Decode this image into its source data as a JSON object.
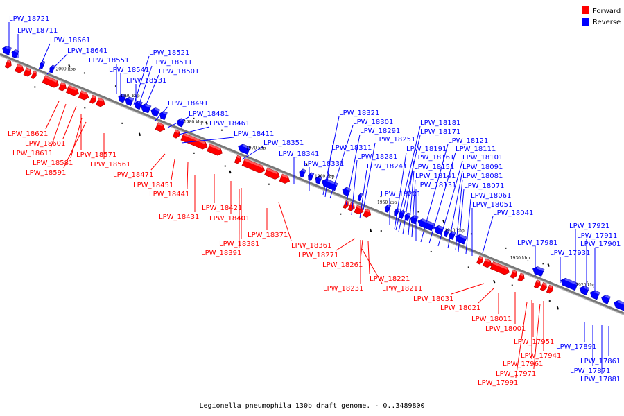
{
  "caption": "Legionella pneumophila 130b draft genome. - 0..3489800",
  "colors": {
    "forward": "#ff0000",
    "reverse": "#0000ff",
    "backbone": "#777777"
  },
  "legend": {
    "forward": "Forward",
    "reverse": "Reverse"
  },
  "ticks": [
    "2000 kbp",
    "1990 kbp",
    "1980 kbp",
    "1970 kbp",
    "1960 kbp",
    "1950 kbp",
    "1940 kbp",
    "1930 kbp",
    "1920 kbp"
  ],
  "genes": [
    {
      "name": "LPW_18721",
      "strand": "reverse"
    },
    {
      "name": "LPW_18711",
      "strand": "reverse"
    },
    {
      "name": "LPW_18661",
      "strand": "reverse"
    },
    {
      "name": "LPW_18641",
      "strand": "reverse"
    },
    {
      "name": "LPW_18551",
      "strand": "reverse"
    },
    {
      "name": "LPW_18541",
      "strand": "reverse"
    },
    {
      "name": "LPW_18531",
      "strand": "reverse"
    },
    {
      "name": "LPW_18521",
      "strand": "reverse"
    },
    {
      "name": "LPW_18511",
      "strand": "reverse"
    },
    {
      "name": "LPW_18501",
      "strand": "reverse"
    },
    {
      "name": "LPW_18491",
      "strand": "reverse"
    },
    {
      "name": "LPW_18481",
      "strand": "reverse"
    },
    {
      "name": "LPW_18461",
      "strand": "reverse"
    },
    {
      "name": "LPW_18411",
      "strand": "reverse"
    },
    {
      "name": "LPW_18351",
      "strand": "reverse"
    },
    {
      "name": "LPW_18341",
      "strand": "reverse"
    },
    {
      "name": "LPW_18331",
      "strand": "reverse"
    },
    {
      "name": "LPW_18321",
      "strand": "reverse"
    },
    {
      "name": "LPW_18301",
      "strand": "reverse"
    },
    {
      "name": "LPW_18291",
      "strand": "reverse"
    },
    {
      "name": "LPW_18311",
      "strand": "reverse"
    },
    {
      "name": "LPW_18251",
      "strand": "reverse"
    },
    {
      "name": "LPW_18281",
      "strand": "reverse"
    },
    {
      "name": "LPW_18241",
      "strand": "reverse"
    },
    {
      "name": "LPW_18201",
      "strand": "reverse"
    },
    {
      "name": "LPW_18181",
      "strand": "reverse"
    },
    {
      "name": "LPW_18171",
      "strand": "reverse"
    },
    {
      "name": "LPW_18191",
      "strand": "reverse"
    },
    {
      "name": "LPW_18161",
      "strand": "reverse"
    },
    {
      "name": "LPW_18151",
      "strand": "reverse"
    },
    {
      "name": "LPW_18141",
      "strand": "reverse"
    },
    {
      "name": "LPW_18131",
      "strand": "reverse"
    },
    {
      "name": "LPW_18121",
      "strand": "reverse"
    },
    {
      "name": "LPW_18111",
      "strand": "reverse"
    },
    {
      "name": "LPW_18101",
      "strand": "reverse"
    },
    {
      "name": "LPW_18091",
      "strand": "reverse"
    },
    {
      "name": "LPW_18081",
      "strand": "reverse"
    },
    {
      "name": "LPW_18071",
      "strand": "reverse"
    },
    {
      "name": "LPW_18061",
      "strand": "reverse"
    },
    {
      "name": "LPW_18051",
      "strand": "reverse"
    },
    {
      "name": "LPW_18041",
      "strand": "reverse"
    },
    {
      "name": "LPW_17981",
      "strand": "reverse"
    },
    {
      "name": "LPW_17931",
      "strand": "reverse"
    },
    {
      "name": "LPW_17921",
      "strand": "reverse"
    },
    {
      "name": "LPW_17911",
      "strand": "reverse"
    },
    {
      "name": "LPW_17901",
      "strand": "reverse"
    },
    {
      "name": "LPW_17891",
      "strand": "reverse"
    },
    {
      "name": "LPW_17861",
      "strand": "reverse"
    },
    {
      "name": "LPW_17871",
      "strand": "reverse"
    },
    {
      "name": "LPW_17881",
      "strand": "reverse"
    },
    {
      "name": "LPW_18621",
      "strand": "forward"
    },
    {
      "name": "LPW_18601",
      "strand": "forward"
    },
    {
      "name": "LPW_18611",
      "strand": "forward"
    },
    {
      "name": "LPW_18571",
      "strand": "forward"
    },
    {
      "name": "LPW_18581",
      "strand": "forward"
    },
    {
      "name": "LPW_18591",
      "strand": "forward"
    },
    {
      "name": "LPW_18561",
      "strand": "forward"
    },
    {
      "name": "LPW_18471",
      "strand": "forward"
    },
    {
      "name": "LPW_18451",
      "strand": "forward"
    },
    {
      "name": "LPW_18441",
      "strand": "forward"
    },
    {
      "name": "LPW_18421",
      "strand": "forward"
    },
    {
      "name": "LPW_18431",
      "strand": "forward"
    },
    {
      "name": "LPW_18401",
      "strand": "forward"
    },
    {
      "name": "LPW_18371",
      "strand": "forward"
    },
    {
      "name": "LPW_18381",
      "strand": "forward"
    },
    {
      "name": "LPW_18391",
      "strand": "forward"
    },
    {
      "name": "LPW_18361",
      "strand": "forward"
    },
    {
      "name": "LPW_18271",
      "strand": "forward"
    },
    {
      "name": "LPW_18261",
      "strand": "forward"
    },
    {
      "name": "LPW_18221",
      "strand": "forward"
    },
    {
      "name": "LPW_18231",
      "strand": "forward"
    },
    {
      "name": "LPW_18211",
      "strand": "forward"
    },
    {
      "name": "LPW_18031",
      "strand": "forward"
    },
    {
      "name": "LPW_18021",
      "strand": "forward"
    },
    {
      "name": "LPW_18011",
      "strand": "forward"
    },
    {
      "name": "LPW_18001",
      "strand": "forward"
    },
    {
      "name": "LPW_17951",
      "strand": "forward"
    },
    {
      "name": "LPW_17941",
      "strand": "forward"
    },
    {
      "name": "LPW_17961",
      "strand": "forward"
    },
    {
      "name": "LPW_17971",
      "strand": "forward"
    },
    {
      "name": "LPW_17991",
      "strand": "forward"
    }
  ]
}
